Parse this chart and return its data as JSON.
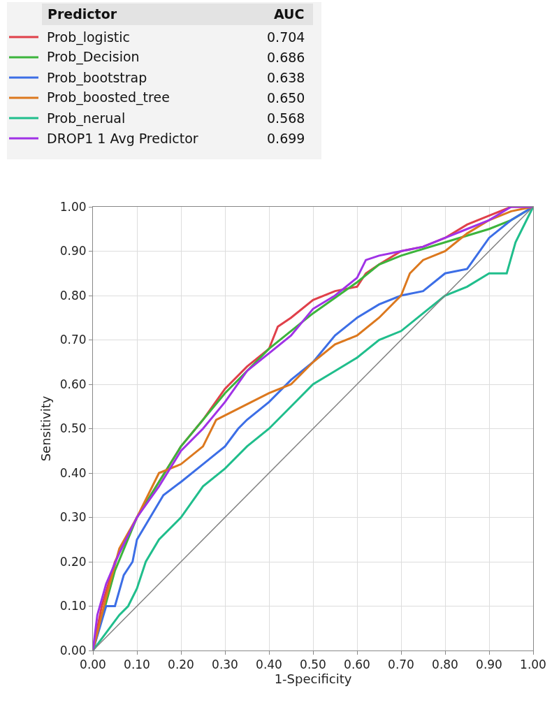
{
  "chart_data": {
    "type": "line",
    "xlabel": "1-Specificity",
    "ylabel": "Sensitivity",
    "legend_title": "Predictor",
    "legend": "top left",
    "grid": true,
    "marker": "none",
    "line_style": "solid",
    "xlim": [
      0,
      1
    ],
    "ylim": [
      0,
      1
    ],
    "xticks": [
      {
        "value": 0,
        "label": "0.00"
      },
      {
        "value": 0.1,
        "label": "0.10"
      },
      {
        "value": 0.2,
        "label": "0.20"
      },
      {
        "value": 0.3,
        "label": "0.30"
      },
      {
        "value": 0.4,
        "label": "0.40"
      },
      {
        "value": 0.5,
        "label": "0.50"
      },
      {
        "value": 0.6,
        "label": "0.60"
      },
      {
        "value": 0.7,
        "label": "0.70"
      },
      {
        "value": 0.8,
        "label": "0.80"
      },
      {
        "value": 0.9,
        "label": "0.90"
      },
      {
        "value": 1,
        "label": "1.00"
      }
    ],
    "yticks": [
      {
        "value": 0,
        "label": "0.00"
      },
      {
        "value": 0.1,
        "label": "0.10"
      },
      {
        "value": 0.2,
        "label": "0.20"
      },
      {
        "value": 0.3,
        "label": "0.30"
      },
      {
        "value": 0.4,
        "label": "0.40"
      },
      {
        "value": 0.5,
        "label": "0.50"
      },
      {
        "value": 0.6,
        "label": "0.60"
      },
      {
        "value": 0.7,
        "label": "0.70"
      },
      {
        "value": 0.8,
        "label": "0.80"
      },
      {
        "value": 0.9,
        "label": "0.90"
      },
      {
        "value": 1,
        "label": "1.00"
      }
    ],
    "annotations": [
      "AUC",
      "0.704",
      "0.686",
      "0.638",
      "0.650",
      "0.568",
      "0.699"
    ],
    "series": [
      {
        "name": "Prob_logistic",
        "color": "#e0404a",
        "x": [
          0,
          0.02,
          0.05,
          0.1,
          0.15,
          0.2,
          0.25,
          0.3,
          0.35,
          0.4,
          0.42,
          0.45,
          0.5,
          0.55,
          0.6,
          0.62,
          0.65,
          0.7,
          0.75,
          0.8,
          0.85,
          0.9,
          0.95,
          1
        ],
        "values": [
          0,
          0.1,
          0.2,
          0.3,
          0.38,
          0.46,
          0.52,
          0.59,
          0.64,
          0.68,
          0.73,
          0.75,
          0.79,
          0.81,
          0.82,
          0.85,
          0.87,
          0.9,
          0.91,
          0.93,
          0.96,
          0.98,
          1,
          1
        ]
      },
      {
        "name": "Prob_Decision",
        "color": "#3cb43c",
        "x": [
          0,
          0.05,
          0.1,
          0.15,
          0.2,
          0.3,
          0.4,
          0.5,
          0.6,
          0.65,
          0.7,
          0.8,
          0.9,
          0.95,
          1
        ],
        "values": [
          0,
          0.18,
          0.3,
          0.38,
          0.46,
          0.58,
          0.68,
          0.76,
          0.83,
          0.87,
          0.89,
          0.92,
          0.95,
          0.97,
          1
        ]
      },
      {
        "name": "Prob_bootstrap",
        "color": "#3c6ee6",
        "x": [
          0,
          0.03,
          0.05,
          0.07,
          0.09,
          0.1,
          0.13,
          0.16,
          0.2,
          0.25,
          0.3,
          0.33,
          0.35,
          0.4,
          0.45,
          0.5,
          0.55,
          0.6,
          0.65,
          0.7,
          0.75,
          0.8,
          0.85,
          0.9,
          0.95,
          1
        ],
        "values": [
          0,
          0.1,
          0.1,
          0.17,
          0.2,
          0.25,
          0.3,
          0.35,
          0.38,
          0.42,
          0.46,
          0.5,
          0.52,
          0.56,
          0.61,
          0.65,
          0.71,
          0.75,
          0.78,
          0.8,
          0.81,
          0.85,
          0.86,
          0.93,
          0.97,
          1
        ]
      },
      {
        "name": "Prob_boosted_tree",
        "color": "#dc781e",
        "x": [
          0,
          0.03,
          0.06,
          0.1,
          0.15,
          0.2,
          0.25,
          0.28,
          0.32,
          0.36,
          0.4,
          0.45,
          0.5,
          0.55,
          0.6,
          0.65,
          0.7,
          0.72,
          0.75,
          0.8,
          0.85,
          0.9,
          0.95,
          1
        ],
        "values": [
          0,
          0.12,
          0.23,
          0.3,
          0.4,
          0.42,
          0.46,
          0.52,
          0.54,
          0.56,
          0.58,
          0.6,
          0.65,
          0.69,
          0.71,
          0.75,
          0.8,
          0.85,
          0.88,
          0.9,
          0.94,
          0.97,
          0.99,
          1
        ]
      },
      {
        "name": "Prob_nerual",
        "color": "#20be8c",
        "x": [
          0,
          0.03,
          0.06,
          0.08,
          0.1,
          0.12,
          0.15,
          0.2,
          0.25,
          0.3,
          0.35,
          0.4,
          0.45,
          0.5,
          0.55,
          0.6,
          0.65,
          0.7,
          0.75,
          0.8,
          0.85,
          0.9,
          0.94,
          0.96,
          1
        ],
        "values": [
          0,
          0.04,
          0.08,
          0.1,
          0.14,
          0.2,
          0.25,
          0.3,
          0.37,
          0.41,
          0.46,
          0.5,
          0.55,
          0.6,
          0.63,
          0.66,
          0.7,
          0.72,
          0.76,
          0.8,
          0.82,
          0.85,
          0.85,
          0.92,
          1
        ]
      },
      {
        "name": "DROP1 1 Avg Predictor",
        "color": "#a032e6",
        "x": [
          0,
          0.01,
          0.03,
          0.06,
          0.1,
          0.15,
          0.2,
          0.25,
          0.3,
          0.35,
          0.4,
          0.45,
          0.5,
          0.55,
          0.6,
          0.62,
          0.65,
          0.7,
          0.75,
          0.8,
          0.85,
          0.9,
          0.95,
          1
        ],
        "values": [
          0,
          0.08,
          0.15,
          0.22,
          0.3,
          0.37,
          0.45,
          0.5,
          0.56,
          0.63,
          0.67,
          0.71,
          0.77,
          0.8,
          0.84,
          0.88,
          0.89,
          0.9,
          0.91,
          0.93,
          0.95,
          0.97,
          1,
          1
        ]
      },
      {
        "color": "#808080",
        "x": [
          0,
          1
        ],
        "values": [
          0,
          1
        ]
      }
    ]
  }
}
